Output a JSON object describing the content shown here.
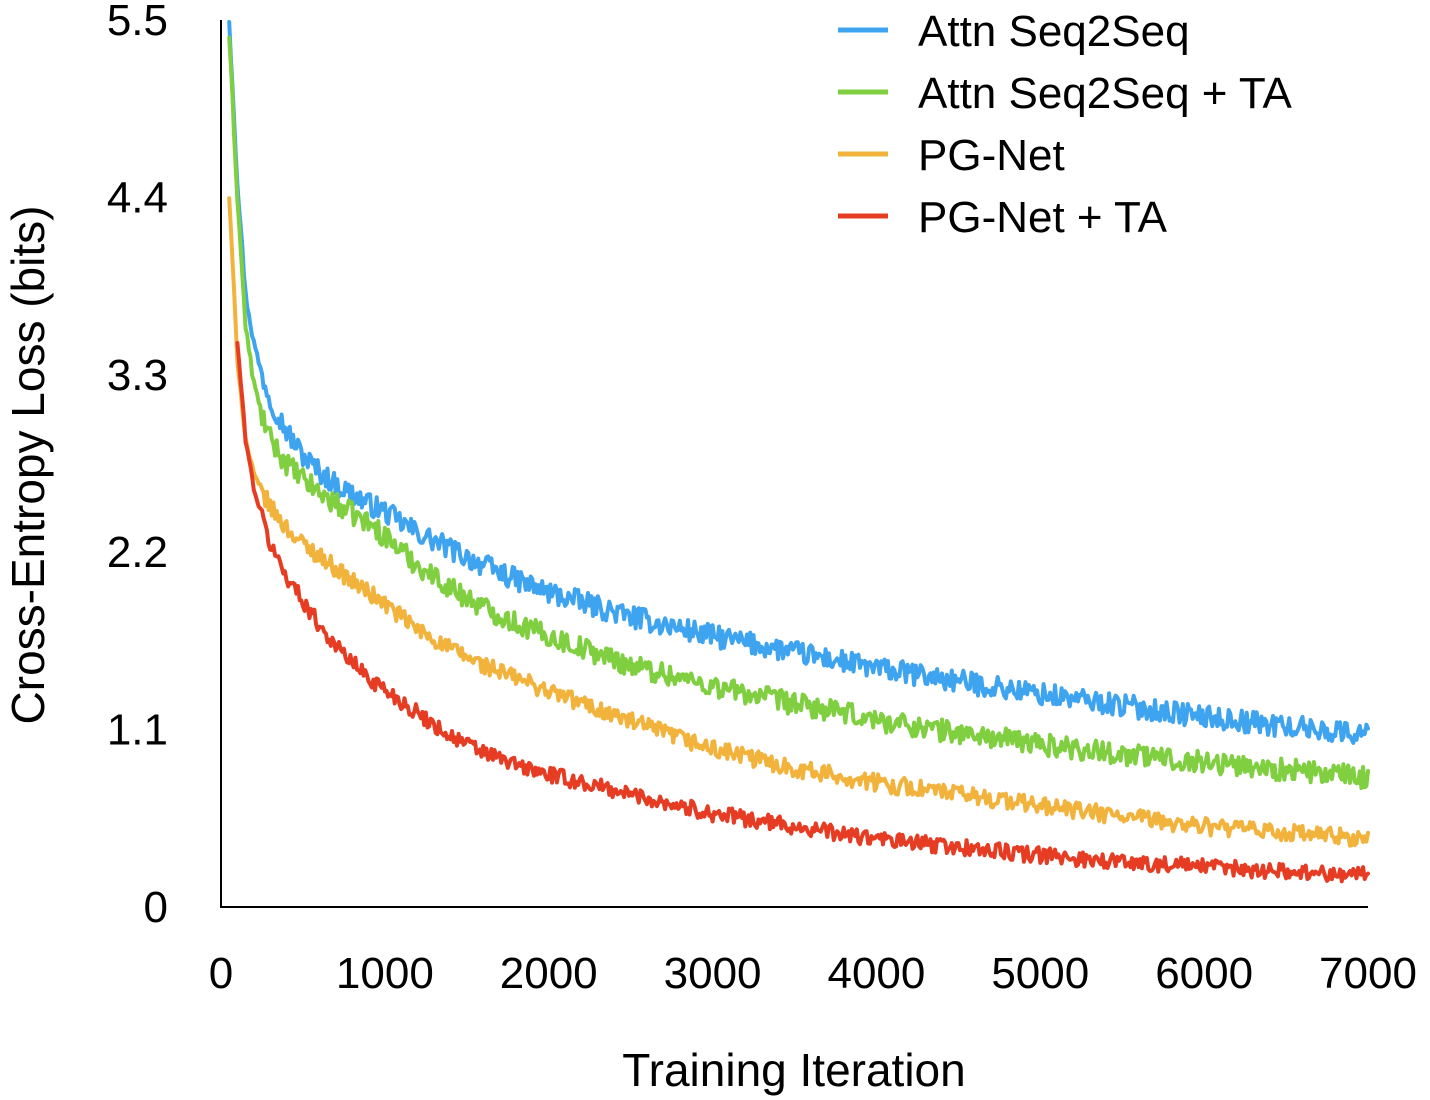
{
  "chart_data": {
    "type": "line",
    "title": "",
    "xlabel": "Training Iteration",
    "ylabel": "Cross-Entropy Loss (bits)",
    "xlim": [
      0,
      7000
    ],
    "ylim": [
      0,
      5.5
    ],
    "xticks": [
      0,
      1000,
      2000,
      3000,
      4000,
      5000,
      6000,
      7000
    ],
    "xtick_labels": [
      "0",
      "1000",
      "2000",
      "3000",
      "4000",
      "5000",
      "6000",
      "7000"
    ],
    "yticks": [
      0,
      1.1,
      2.2,
      3.3,
      4.4,
      5.5
    ],
    "ytick_labels": [
      "0",
      "1.1",
      "2.2",
      "3.3",
      "4.4",
      "5.5"
    ],
    "grid": false,
    "legend_position": "top-right",
    "series": [
      {
        "name": "Attn Seq2Seq",
        "color": "#3fa4f0",
        "noise": 0.07,
        "x": [
          50,
          100,
          150,
          200,
          250,
          300,
          400,
          500,
          600,
          700,
          800,
          900,
          1000,
          1200,
          1400,
          1600,
          1800,
          2000,
          2500,
          3000,
          3500,
          4000,
          4500,
          5000,
          5500,
          6000,
          6500,
          7000
        ],
        "values": [
          5.5,
          4.5,
          3.8,
          3.5,
          3.3,
          3.15,
          2.95,
          2.8,
          2.7,
          2.62,
          2.56,
          2.5,
          2.45,
          2.32,
          2.22,
          2.12,
          2.03,
          1.95,
          1.8,
          1.68,
          1.58,
          1.48,
          1.4,
          1.32,
          1.25,
          1.18,
          1.12,
          1.07
        ]
      },
      {
        "name": "Attn Seq2Seq + TA",
        "color": "#7fcf41",
        "noise": 0.07,
        "x": [
          50,
          100,
          150,
          200,
          250,
          300,
          400,
          500,
          600,
          700,
          800,
          900,
          1000,
          1200,
          1400,
          1600,
          1800,
          2000,
          2500,
          3000,
          3500,
          4000,
          4500,
          5000,
          5500,
          6000,
          6500,
          7000
        ],
        "values": [
          5.4,
          4.4,
          3.6,
          3.25,
          3.05,
          2.9,
          2.75,
          2.65,
          2.57,
          2.5,
          2.44,
          2.38,
          2.3,
          2.12,
          1.98,
          1.86,
          1.76,
          1.68,
          1.5,
          1.37,
          1.26,
          1.16,
          1.08,
          1.01,
          0.95,
          0.9,
          0.85,
          0.8
        ]
      },
      {
        "name": "PG-Net",
        "color": "#f2b33d",
        "noise": 0.055,
        "x": [
          50,
          100,
          150,
          200,
          250,
          300,
          400,
          500,
          600,
          700,
          800,
          900,
          1000,
          1200,
          1400,
          1600,
          1800,
          2000,
          2500,
          3000,
          3500,
          4000,
          4500,
          5000,
          5500,
          6000,
          6500,
          7000
        ],
        "values": [
          4.4,
          3.4,
          2.9,
          2.68,
          2.58,
          2.48,
          2.35,
          2.25,
          2.18,
          2.1,
          2.02,
          1.95,
          1.88,
          1.72,
          1.6,
          1.5,
          1.42,
          1.34,
          1.15,
          0.98,
          0.86,
          0.77,
          0.7,
          0.63,
          0.56,
          0.5,
          0.46,
          0.42
        ]
      },
      {
        "name": "PG-Net + TA",
        "color": "#e63c23",
        "noise": 0.05,
        "x": [
          100,
          150,
          200,
          250,
          300,
          400,
          500,
          600,
          700,
          800,
          900,
          1000,
          1200,
          1400,
          1600,
          1800,
          2000,
          2500,
          3000,
          3500,
          4000,
          4500,
          5000,
          5500,
          6000,
          6500,
          7000
        ],
        "values": [
          3.5,
          2.9,
          2.6,
          2.42,
          2.25,
          2.05,
          1.9,
          1.75,
          1.62,
          1.52,
          1.42,
          1.35,
          1.2,
          1.06,
          0.96,
          0.88,
          0.82,
          0.7,
          0.58,
          0.5,
          0.42,
          0.37,
          0.32,
          0.28,
          0.25,
          0.22,
          0.2
        ]
      }
    ]
  }
}
